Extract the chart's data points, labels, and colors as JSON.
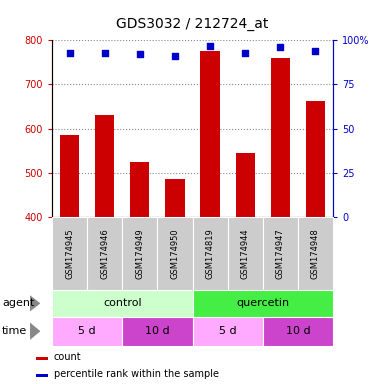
{
  "title": "GDS3032 / 212724_at",
  "samples": [
    "GSM174945",
    "GSM174946",
    "GSM174949",
    "GSM174950",
    "GSM174819",
    "GSM174944",
    "GSM174947",
    "GSM174948"
  ],
  "counts": [
    585,
    630,
    525,
    485,
    775,
    545,
    760,
    663
  ],
  "percentile_ranks": [
    93,
    93,
    92,
    91,
    97,
    93,
    96,
    94
  ],
  "y_min": 400,
  "y_max": 800,
  "y_ticks": [
    400,
    500,
    600,
    700,
    800
  ],
  "y_right_ticks": [
    0,
    25,
    50,
    75,
    100
  ],
  "y_right_labels": [
    "0",
    "25",
    "50",
    "75",
    "100%"
  ],
  "bar_color": "#cc0000",
  "dot_color": "#0000cc",
  "agent_groups": [
    {
      "label": "control",
      "start": 0,
      "end": 4,
      "color": "#ccffcc"
    },
    {
      "label": "quercetin",
      "start": 4,
      "end": 8,
      "color": "#44ee44"
    }
  ],
  "time_groups": [
    {
      "label": "5 d",
      "start": 0,
      "end": 2,
      "color": "#ffaaff"
    },
    {
      "label": "10 d",
      "start": 2,
      "end": 4,
      "color": "#cc44cc"
    },
    {
      "label": "5 d",
      "start": 4,
      "end": 6,
      "color": "#ffaaff"
    },
    {
      "label": "10 d",
      "start": 6,
      "end": 8,
      "color": "#cc44cc"
    }
  ],
  "left_axis_color": "#cc0000",
  "right_axis_color": "#0000cc",
  "grid_color": "#888888",
  "bg_label_row": "#cccccc",
  "tick_fontsize": 7,
  "title_fontsize": 10,
  "sample_fontsize": 6,
  "row_fontsize": 8
}
